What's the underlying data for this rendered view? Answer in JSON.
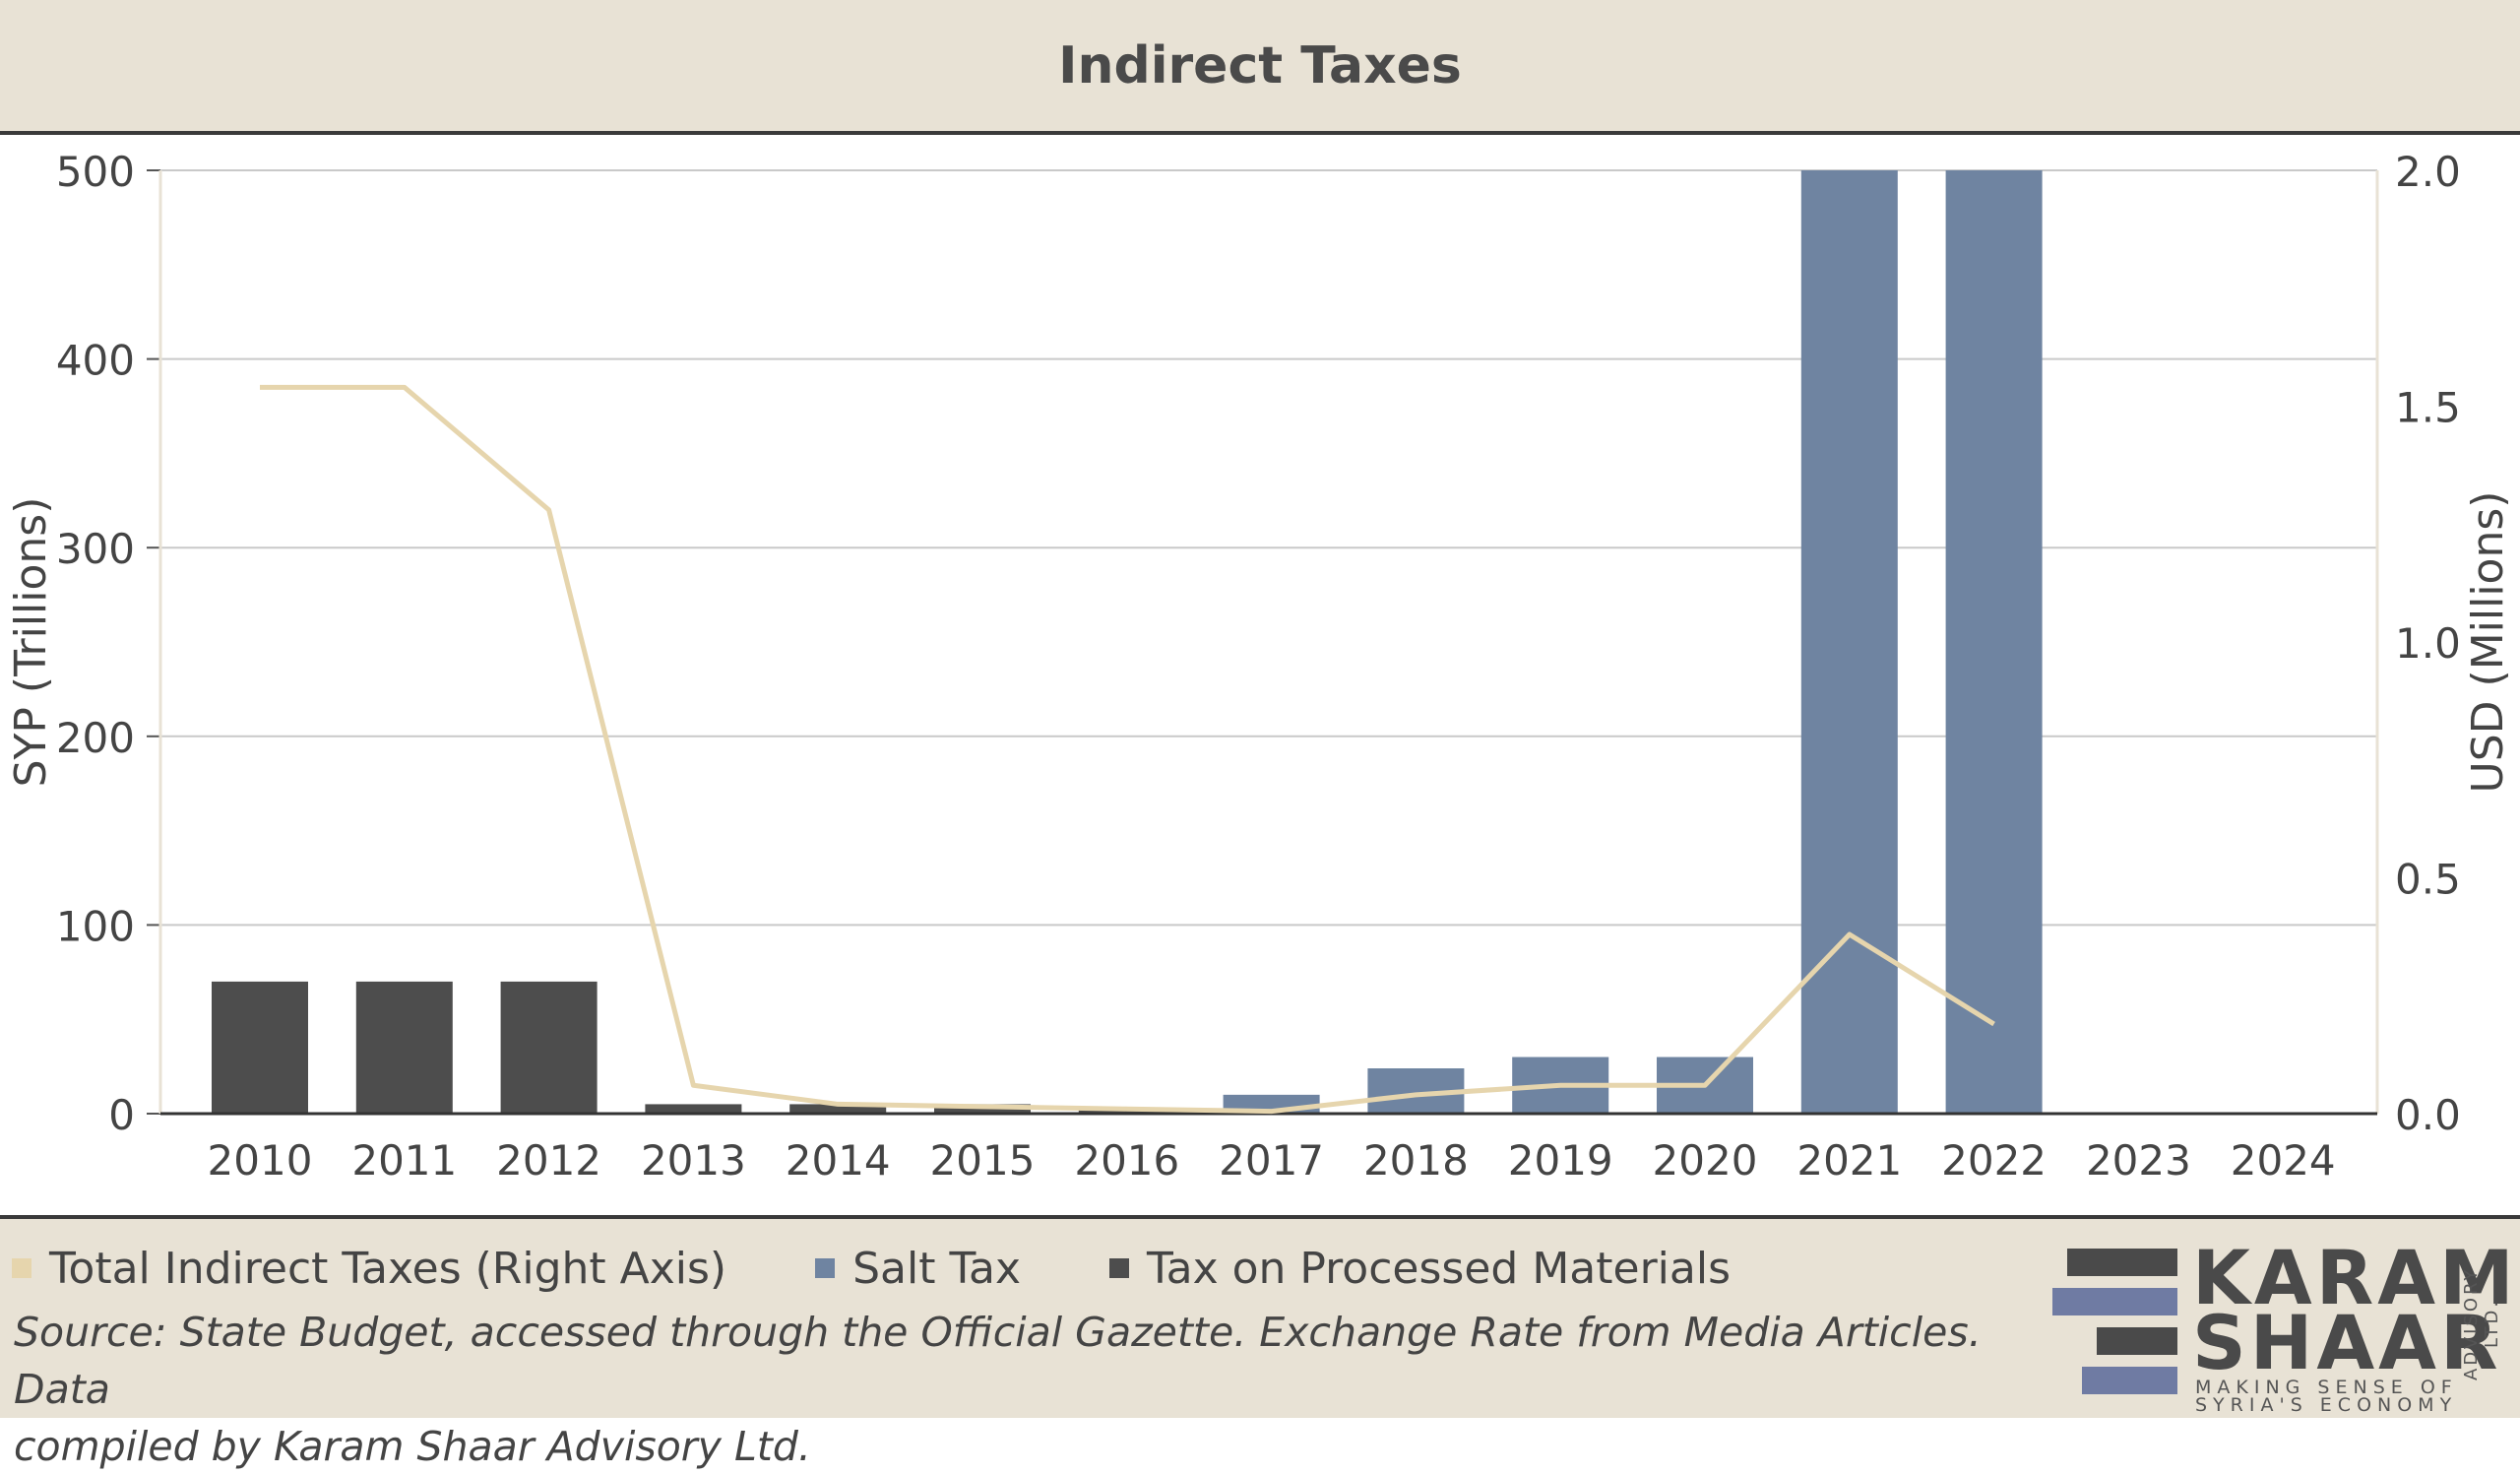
{
  "title": "Indirect Taxes",
  "chart_data": {
    "type": "bar",
    "title": "Indirect Taxes",
    "categories": [
      "2010",
      "2011",
      "2012",
      "2013",
      "2014",
      "2015",
      "2016",
      "2017",
      "2018",
      "2019",
      "2020",
      "2021",
      "2022",
      "2023",
      "2024"
    ],
    "series": [
      {
        "name": "Tax on Processed Materials",
        "type": "bar",
        "axis": "left",
        "values": [
          70,
          70,
          70,
          5,
          5,
          5,
          3,
          0,
          0,
          0,
          0,
          0,
          0,
          null,
          null
        ]
      },
      {
        "name": "Salt Tax",
        "type": "bar",
        "axis": "left",
        "values": [
          0,
          0,
          0,
          0,
          0,
          0,
          0,
          10,
          24,
          30,
          30,
          500,
          500,
          null,
          null
        ]
      },
      {
        "name": "Total Indirect Taxes (Right Axis)",
        "type": "line",
        "axis": "right",
        "values": [
          1.54,
          1.54,
          1.28,
          0.06,
          0.02,
          0.015,
          0.01,
          0.005,
          0.04,
          0.06,
          0.06,
          0.38,
          0.19,
          null,
          null
        ]
      }
    ],
    "ylabel": "SYP (Trillions)",
    "ylabel_right": "USD (Millions)",
    "ylim": [
      0,
      500
    ],
    "ylim_right": [
      0,
      2.0
    ],
    "yticks": [
      "0",
      "100",
      "200",
      "300",
      "400",
      "500"
    ],
    "yticks_right": [
      "0.0",
      "0.5",
      "1.0",
      "1.5",
      "2.0"
    ],
    "grid": true,
    "legend_position": "bottom-left"
  },
  "colors": {
    "processed": "#4d4d4d",
    "salt": "#6f84a1",
    "total": "#e6d5ad",
    "background": "#e8e2d5"
  },
  "legend": {
    "total": "Total Indirect Taxes (Right Axis)",
    "salt": "Salt Tax",
    "processed": "Tax on Processed Materials"
  },
  "source_line1": "Source: State Budget, accessed through the Official Gazette. Exchange Rate from Media Articles. Data",
  "source_line2": "compiled by Karam Shaar Advisory Ltd.",
  "logo": {
    "line1": "KARAM",
    "line2": "SHAAR",
    "tagline1": "MAKING SENSE OF",
    "tagline2": "SYRIA'S ECONOMY",
    "side": "ADVISORY LTD."
  }
}
